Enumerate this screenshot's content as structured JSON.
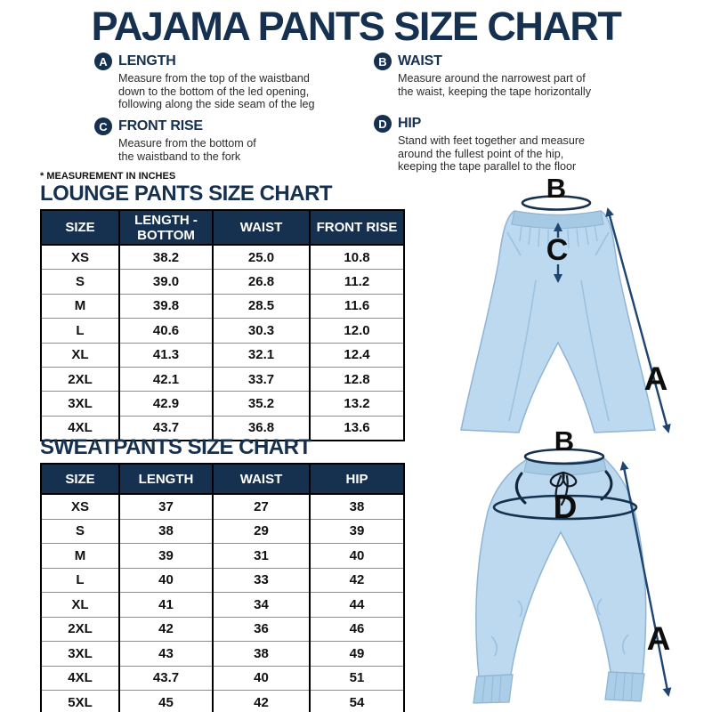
{
  "title": "PAJAMA PANTS SIZE CHART",
  "note": "* MEASUREMENT IN INCHES",
  "colors": {
    "navy": "#16304f",
    "arrow_blue": "#1e4472",
    "pants_fill": "#bcd9ef",
    "pants_shade": "#a6c9e4",
    "text": "#2b2b2b"
  },
  "definitions": [
    {
      "letter": "A",
      "term": "LENGTH",
      "desc": "Measure from the top of the waistband\ndown to the bottom of the led opening,\nfollowing along the side seam of the leg"
    },
    {
      "letter": "B",
      "term": "WAIST",
      "desc": "Measure around the narrowest part of\nthe waist, keeping the tape horizontally"
    },
    {
      "letter": "C",
      "term": "FRONT RISE",
      "desc": "Measure from the bottom of\nthe waistband to the fork"
    },
    {
      "letter": "D",
      "term": "HIP",
      "desc": "Stand with feet together and measure\naround the fullest point of the hip,\nkeeping the tape parallel to the floor"
    }
  ],
  "lounge_table": {
    "title": "LOUNGE PANTS SIZE CHART",
    "headers": [
      "SIZE",
      "LENGTH - BOTTOM",
      "WAIST",
      "FRONT RISE"
    ],
    "rows": [
      [
        "XS",
        "38.2",
        "25.0",
        "10.8"
      ],
      [
        "S",
        "39.0",
        "26.8",
        "11.2"
      ],
      [
        "M",
        "39.8",
        "28.5",
        "11.6"
      ],
      [
        "L",
        "40.6",
        "30.3",
        "12.0"
      ],
      [
        "XL",
        "41.3",
        "32.1",
        "12.4"
      ],
      [
        "2XL",
        "42.1",
        "33.7",
        "12.8"
      ],
      [
        "3XL",
        "42.9",
        "35.2",
        "13.2"
      ],
      [
        "4XL",
        "43.7",
        "36.8",
        "13.6"
      ]
    ]
  },
  "sweat_table": {
    "title": "SWEATPANTS SIZE CHART",
    "headers": [
      "SIZE",
      "LENGTH",
      "WAIST",
      "HIP"
    ],
    "rows": [
      [
        "XS",
        "37",
        "27",
        "38"
      ],
      [
        "S",
        "38",
        "29",
        "39"
      ],
      [
        "M",
        "39",
        "31",
        "40"
      ],
      [
        "L",
        "40",
        "33",
        "42"
      ],
      [
        "XL",
        "41",
        "34",
        "44"
      ],
      [
        "2XL",
        "42",
        "36",
        "46"
      ],
      [
        "3XL",
        "43",
        "38",
        "49"
      ],
      [
        "4XL",
        "43.7",
        "40",
        "51"
      ],
      [
        "5XL",
        "45",
        "42",
        "54"
      ]
    ]
  },
  "illustrations": {
    "lounge": {
      "waist_label": "B",
      "front_rise_label": "C",
      "length_label": "A"
    },
    "sweat": {
      "waist_label": "B",
      "hip_label": "D",
      "length_label": "A"
    }
  }
}
